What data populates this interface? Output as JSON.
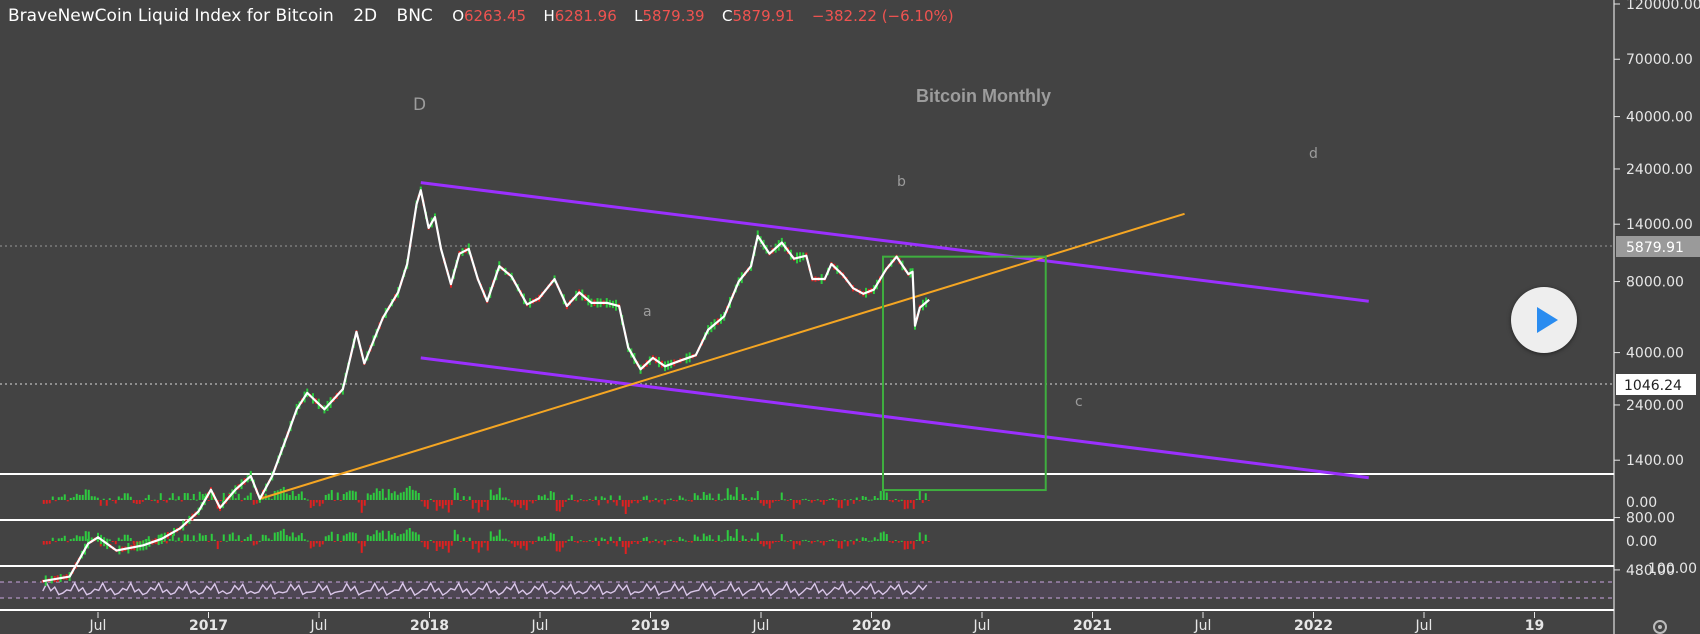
{
  "header": {
    "title": "BraveNewCoin Liquid Index for Bitcoin",
    "interval": "2D",
    "exchange": "BNC",
    "open_label": "O",
    "open": "6263.45",
    "high_label": "H",
    "high": "6281.96",
    "low_label": "L",
    "low": "5879.39",
    "close_label": "C",
    "close": "5879.91",
    "change": "−382.22 (−6.10%)"
  },
  "colors": {
    "background": "#434343",
    "price_line": "#ffffff",
    "candle_up": "#2ecc40",
    "candle_down": "#e02020",
    "channel": "#9b30ff",
    "trendline": "#f5a623",
    "box": "#3fae3f",
    "rsi": "#d9c6e8",
    "separator": "#ffffff"
  },
  "annotations": {
    "chart_title": "Bitcoin Monthly",
    "wave_D": "D",
    "wave_a": "a",
    "wave_b": "b",
    "wave_c": "c",
    "wave_d": "d"
  },
  "price_axis": {
    "ticks": [
      "120000.00",
      "70000.00",
      "40000.00",
      "24000.00",
      "14000.00",
      "8000.00",
      "4000.00",
      "2400.00",
      "1400.00",
      "800.00",
      "480.00"
    ],
    "current_price": "5879.91",
    "marker_price": "1046.24"
  },
  "indicator_axis": {
    "macd_hist": "0.00",
    "momentum": "0.00",
    "rsi": "100.00"
  },
  "time_axis": {
    "labels": [
      "Jul",
      "2017",
      "Jul",
      "2018",
      "Jul",
      "2019",
      "Jul",
      "2020",
      "Jul",
      "2021",
      "Jul",
      "2022",
      "Jul",
      "19"
    ]
  },
  "play_button": {
    "icon": "play-icon"
  },
  "settings": {
    "icon": "gear-icon"
  },
  "chart_data": {
    "type": "line",
    "title": "BraveNewCoin Liquid Index for Bitcoin",
    "y_scale": "log",
    "ylim": [
      420,
      125000
    ],
    "x_range": [
      "2016-04",
      "2022-10"
    ],
    "series": [
      {
        "name": "BraveNewCoin Liquid Index for Bitcoin",
        "x": [
          "2016-04-01",
          "2016-05-15",
          "2016-06-15",
          "2016-07-01",
          "2016-08-01",
          "2016-09-15",
          "2016-10-15",
          "2016-11-15",
          "2016-12-15",
          "2017-01-05",
          "2017-01-20",
          "2017-02-15",
          "2017-03-10",
          "2017-03-25",
          "2017-04-15",
          "2017-05-10",
          "2017-05-25",
          "2017-06-12",
          "2017-07-10",
          "2017-08-10",
          "2017-09-02",
          "2017-09-15",
          "2017-10-15",
          "2017-11-10",
          "2017-11-25",
          "2017-12-10",
          "2017-12-17",
          "2017-12-30",
          "2018-01-10",
          "2018-01-20",
          "2018-02-06",
          "2018-02-20",
          "2018-03-05",
          "2018-03-20",
          "2018-04-05",
          "2018-04-25",
          "2018-05-15",
          "2018-06-10",
          "2018-06-30",
          "2018-07-25",
          "2018-08-15",
          "2018-09-05",
          "2018-09-25",
          "2018-10-20",
          "2018-11-10",
          "2018-11-25",
          "2018-12-15",
          "2019-01-05",
          "2019-01-25",
          "2019-02-20",
          "2019-03-15",
          "2019-04-05",
          "2019-05-01",
          "2019-05-25",
          "2019-06-15",
          "2019-06-26",
          "2019-07-15",
          "2019-08-05",
          "2019-08-25",
          "2019-09-15",
          "2019-09-25",
          "2019-10-15",
          "2019-10-26",
          "2019-11-15",
          "2019-12-01",
          "2019-12-18",
          "2020-01-05",
          "2020-01-25",
          "2020-02-12",
          "2020-03-01",
          "2020-03-08",
          "2020-03-12",
          "2020-03-20",
          "2020-04-05"
        ],
        "values": [
          430,
          450,
          620,
          660,
          580,
          610,
          650,
          720,
          850,
          1050,
          880,
          1050,
          1200,
          960,
          1200,
          1800,
          2300,
          2700,
          2300,
          2800,
          4900,
          3600,
          5600,
          7200,
          9500,
          17000,
          19500,
          13500,
          15000,
          11000,
          7800,
          10500,
          11000,
          8200,
          6600,
          9300,
          8400,
          6400,
          6800,
          8200,
          6300,
          7200,
          6500,
          6500,
          6300,
          4200,
          3400,
          3800,
          3500,
          3700,
          3900,
          5000,
          5700,
          8000,
          9300,
          12500,
          10500,
          11700,
          10000,
          10300,
          8200,
          8200,
          9500,
          8500,
          7500,
          7100,
          7400,
          9000,
          10200,
          8600,
          8800,
          5200,
          6200,
          6700
        ]
      }
    ],
    "overlays": {
      "channel_upper": {
        "x": [
          "2017-12-17",
          "2022-04-01"
        ],
        "y": [
          21000,
          6600
        ]
      },
      "channel_lower": {
        "x": [
          "2017-12-17",
          "2022-04-01"
        ],
        "y": [
          3800,
          1180
        ]
      },
      "trendline": {
        "x": [
          "2017-03-25",
          "2021-06-01"
        ],
        "y": [
          960,
          15500
        ]
      },
      "box": {
        "x": [
          "2020-01-20",
          "2020-10-15"
        ],
        "y": [
          1046.24,
          10200
        ]
      }
    },
    "legend": "none"
  }
}
